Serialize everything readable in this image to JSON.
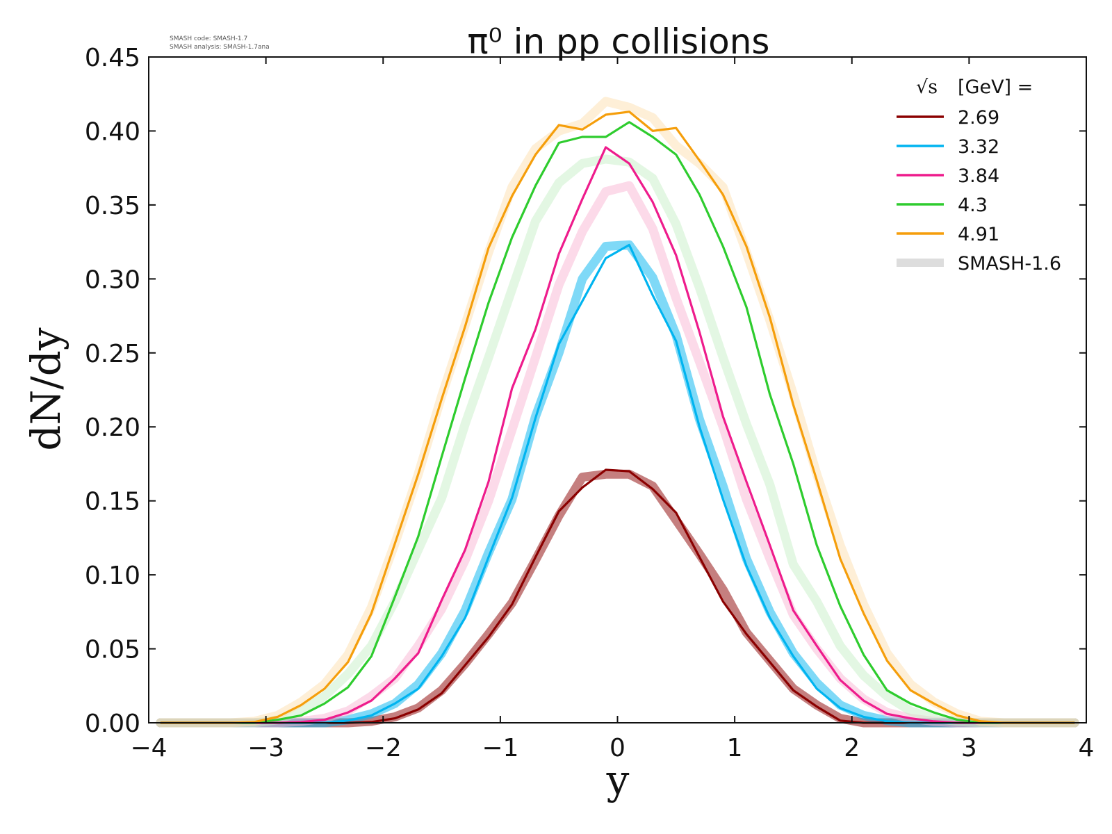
{
  "version_note": {
    "line1": "SMASH code:      SMASH-1.7",
    "line2": "SMASH analysis: SMASH-1.7ana"
  },
  "legend": {
    "title_symbol": "√s",
    "title_suffix": "[GeV] ="
  },
  "chart_data": {
    "type": "line",
    "title": "π⁰ in pp collisions",
    "xlabel": "y",
    "ylabel": "dN/dy",
    "xlim": [
      -4,
      4
    ],
    "ylim": [
      0,
      0.45
    ],
    "xticks": [
      -4,
      -3,
      -2,
      -1,
      0,
      1,
      2,
      3,
      4
    ],
    "xtick_labels": [
      "−4",
      "−3",
      "−2",
      "−1",
      "0",
      "1",
      "2",
      "3",
      "4"
    ],
    "yticks": [
      0,
      0.05,
      0.1,
      0.15,
      0.2,
      0.25,
      0.3,
      0.35,
      0.4,
      0.45
    ],
    "ytick_labels": [
      "0.00",
      "0.05",
      "0.10",
      "0.15",
      "0.20",
      "0.25",
      "0.30",
      "0.35",
      "0.40",
      "0.45"
    ],
    "grid": false,
    "legend_position": "top-right",
    "x": [
      -3.9,
      -3.7,
      -3.5,
      -3.3,
      -3.1,
      -2.9,
      -2.7,
      -2.5,
      -2.3,
      -2.1,
      -1.9,
      -1.7,
      -1.5,
      -1.3,
      -1.1,
      -0.9,
      -0.7,
      -0.5,
      -0.3,
      -0.1,
      0.1,
      0.3,
      0.5,
      0.7,
      0.9,
      1.1,
      1.3,
      1.5,
      1.7,
      1.9,
      2.1,
      2.3,
      2.5,
      2.7,
      2.9,
      3.1,
      3.3,
      3.5,
      3.7,
      3.9
    ],
    "series": [
      {
        "name": "2.69",
        "color": "#8b0000",
        "values": [
          0,
          0,
          0,
          0,
          0,
          0,
          0,
          0,
          0,
          0.0005,
          0.003,
          0.009,
          0.02,
          0.039,
          0.058,
          0.08,
          0.112,
          0.143,
          0.159,
          0.171,
          0.17,
          0.158,
          0.142,
          0.112,
          0.082,
          0.06,
          0.041,
          0.022,
          0.011,
          0.0015,
          0,
          0,
          0,
          0,
          0,
          0,
          0,
          0,
          0,
          0
        ]
      },
      {
        "name": "3.32",
        "color": "#00b4f0",
        "values": [
          0,
          0,
          0,
          0,
          0,
          0,
          0,
          0,
          0.0015,
          0.005,
          0.013,
          0.023,
          0.045,
          0.071,
          0.112,
          0.152,
          0.206,
          0.256,
          0.285,
          0.314,
          0.323,
          0.289,
          0.258,
          0.2,
          0.151,
          0.106,
          0.071,
          0.045,
          0.023,
          0.01,
          0.004,
          0.001,
          0,
          0,
          0,
          0,
          0,
          0,
          0,
          0
        ]
      },
      {
        "name": "3.84",
        "color": "#ee1c8c",
        "values": [
          0,
          0,
          0,
          0,
          0,
          0,
          0.0005,
          0.002,
          0.007,
          0.015,
          0.03,
          0.047,
          0.083,
          0.117,
          0.163,
          0.226,
          0.266,
          0.317,
          0.354,
          0.389,
          0.378,
          0.352,
          0.316,
          0.264,
          0.207,
          0.163,
          0.12,
          0.076,
          0.052,
          0.029,
          0.015,
          0.006,
          0.003,
          0.001,
          0,
          0,
          0,
          0,
          0,
          0
        ]
      },
      {
        "name": "4.3",
        "color": "#2ecc2e",
        "values": [
          0,
          0,
          0,
          0,
          0,
          0.002,
          0.005,
          0.013,
          0.024,
          0.045,
          0.085,
          0.126,
          0.18,
          0.233,
          0.284,
          0.328,
          0.363,
          0.392,
          0.396,
          0.396,
          0.406,
          0.396,
          0.384,
          0.357,
          0.322,
          0.281,
          0.222,
          0.175,
          0.12,
          0.079,
          0.046,
          0.022,
          0.013,
          0.007,
          0.002,
          0,
          0,
          0,
          0,
          0
        ]
      },
      {
        "name": "4.91",
        "color": "#f59e0b",
        "values": [
          0,
          0,
          0,
          0,
          0.0005,
          0.004,
          0.012,
          0.023,
          0.041,
          0.074,
          0.121,
          0.168,
          0.219,
          0.268,
          0.321,
          0.356,
          0.384,
          0.404,
          0.401,
          0.411,
          0.413,
          0.4,
          0.402,
          0.38,
          0.357,
          0.322,
          0.274,
          0.215,
          0.164,
          0.111,
          0.074,
          0.042,
          0.022,
          0.013,
          0.005,
          0.001,
          0,
          0,
          0,
          0
        ]
      }
    ],
    "reference": {
      "name": "SMASH-1.6",
      "legend_color": "#dddddd",
      "curves": [
        {
          "color": "#8b0000",
          "values": [
            0,
            0,
            0,
            0,
            0,
            0,
            0,
            0,
            0,
            0.001,
            0.004,
            0.01,
            0.022,
            0.04,
            0.06,
            0.081,
            0.11,
            0.14,
            0.166,
            0.168,
            0.168,
            0.16,
            0.137,
            0.114,
            0.09,
            0.061,
            0.042,
            0.023,
            0.012,
            0.003,
            0,
            0,
            0,
            0,
            0,
            0,
            0,
            0,
            0,
            0
          ]
        },
        {
          "color": "#00b4f0",
          "values": [
            0,
            0,
            0,
            0,
            0,
            0,
            0,
            0,
            0.002,
            0.006,
            0.013,
            0.026,
            0.047,
            0.076,
            0.115,
            0.151,
            0.207,
            0.25,
            0.3,
            0.322,
            0.323,
            0.301,
            0.262,
            0.205,
            0.16,
            0.111,
            0.075,
            0.047,
            0.027,
            0.012,
            0.005,
            0.0015,
            0,
            0,
            0,
            0,
            0,
            0,
            0,
            0
          ]
        },
        {
          "color": "#f9b6d4",
          "values": [
            0,
            0,
            0,
            0,
            0,
            0,
            0.001,
            0.003,
            0.008,
            0.018,
            0.03,
            0.052,
            0.077,
            0.11,
            0.15,
            0.198,
            0.247,
            0.296,
            0.332,
            0.359,
            0.363,
            0.334,
            0.287,
            0.244,
            0.2,
            0.151,
            0.111,
            0.073,
            0.05,
            0.03,
            0.016,
            0.007,
            0.003,
            0.001,
            0,
            0,
            0,
            0,
            0,
            0
          ]
        },
        {
          "color": "#c8f0c8",
          "values": [
            0,
            0,
            0,
            0,
            0,
            0.002,
            0.008,
            0.018,
            0.033,
            0.052,
            0.082,
            0.117,
            0.152,
            0.202,
            0.247,
            0.293,
            0.339,
            0.365,
            0.378,
            0.381,
            0.379,
            0.368,
            0.337,
            0.294,
            0.247,
            0.202,
            0.161,
            0.107,
            0.082,
            0.052,
            0.032,
            0.018,
            0.008,
            0.003,
            0.001,
            0,
            0,
            0,
            0,
            0
          ]
        },
        {
          "color": "#fde0b0",
          "values": [
            0,
            0,
            0,
            0,
            0.001,
            0.005,
            0.014,
            0.026,
            0.046,
            0.078,
            0.121,
            0.168,
            0.221,
            0.269,
            0.318,
            0.362,
            0.388,
            0.4,
            0.405,
            0.42,
            0.416,
            0.409,
            0.39,
            0.378,
            0.362,
            0.318,
            0.272,
            0.222,
            0.168,
            0.12,
            0.08,
            0.047,
            0.026,
            0.014,
            0.006,
            0.001,
            0,
            0,
            0,
            0
          ]
        }
      ]
    }
  }
}
